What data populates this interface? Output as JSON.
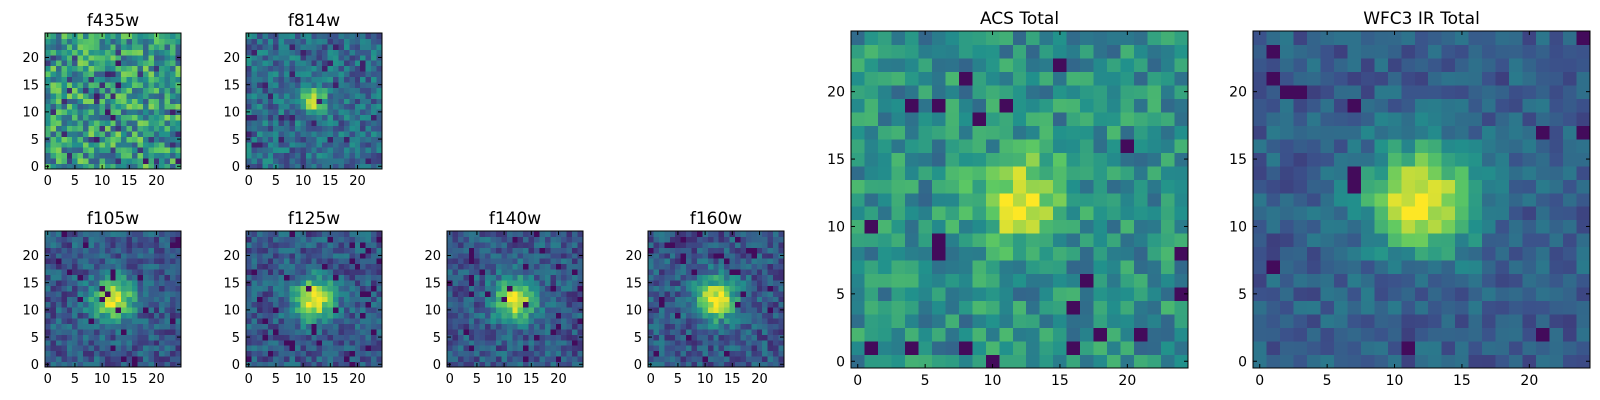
{
  "colormap": [
    "#440154",
    "#3b528b",
    "#21918c",
    "#5ec962",
    "#fde725"
  ],
  "chart_data": [
    {
      "type": "heatmap",
      "title": "f435w",
      "size": 25,
      "xticks": [
        0,
        5,
        10,
        15,
        20
      ],
      "yticks": [
        0,
        5,
        10,
        15,
        20
      ],
      "xlim": [
        -0.5,
        24.5
      ],
      "ylim": [
        -0.5,
        24.5
      ],
      "peak": [
        12,
        12
      ],
      "style": "noise",
      "seed": 435
    },
    {
      "type": "heatmap",
      "title": "f814w",
      "size": 25,
      "xticks": [
        0,
        5,
        10,
        15,
        20
      ],
      "yticks": [
        0,
        5,
        10,
        15,
        20
      ],
      "xlim": [
        -0.5,
        24.5
      ],
      "ylim": [
        -0.5,
        24.5
      ],
      "peak": [
        12,
        12
      ],
      "style": "faint",
      "seed": 814
    },
    {
      "type": "heatmap",
      "title": "f105w",
      "size": 25,
      "xticks": [
        0,
        5,
        10,
        15,
        20
      ],
      "yticks": [
        0,
        5,
        10,
        15,
        20
      ],
      "xlim": [
        -0.5,
        24.5
      ],
      "ylim": [
        -0.5,
        24.5
      ],
      "peak": [
        12,
        12
      ],
      "style": "source",
      "seed": 105
    },
    {
      "type": "heatmap",
      "title": "f125w",
      "size": 25,
      "xticks": [
        0,
        5,
        10,
        15,
        20
      ],
      "yticks": [
        0,
        5,
        10,
        15,
        20
      ],
      "xlim": [
        -0.5,
        24.5
      ],
      "ylim": [
        -0.5,
        24.5
      ],
      "peak": [
        12,
        12
      ],
      "style": "source",
      "seed": 125
    },
    {
      "type": "heatmap",
      "title": "f140w",
      "size": 25,
      "xticks": [
        0,
        5,
        10,
        15,
        20
      ],
      "yticks": [
        0,
        5,
        10,
        15,
        20
      ],
      "xlim": [
        -0.5,
        24.5
      ],
      "ylim": [
        -0.5,
        24.5
      ],
      "peak": [
        12,
        12
      ],
      "style": "source",
      "seed": 140
    },
    {
      "type": "heatmap",
      "title": "f160w",
      "size": 25,
      "xticks": [
        0,
        5,
        10,
        15,
        20
      ],
      "yticks": [
        0,
        5,
        10,
        15,
        20
      ],
      "xlim": [
        -0.5,
        24.5
      ],
      "ylim": [
        -0.5,
        24.5
      ],
      "peak": [
        12,
        12
      ],
      "style": "source",
      "seed": 160
    },
    {
      "type": "heatmap",
      "title": "ACS Total",
      "size": 25,
      "xticks": [
        0,
        5,
        10,
        15,
        20
      ],
      "yticks": [
        0,
        5,
        10,
        15,
        20
      ],
      "xlim": [
        -0.5,
        24.5
      ],
      "ylim": [
        -0.5,
        24.5
      ],
      "peak": [
        12,
        12
      ],
      "style": "acs",
      "seed": 901
    },
    {
      "type": "heatmap",
      "title": "WFC3 IR Total",
      "size": 25,
      "xticks": [
        0,
        5,
        10,
        15,
        20
      ],
      "yticks": [
        0,
        5,
        10,
        15,
        20
      ],
      "xlim": [
        -0.5,
        24.5
      ],
      "ylim": [
        -0.5,
        24.5
      ],
      "peak": [
        12,
        12
      ],
      "style": "ir",
      "seed": 902
    }
  ]
}
